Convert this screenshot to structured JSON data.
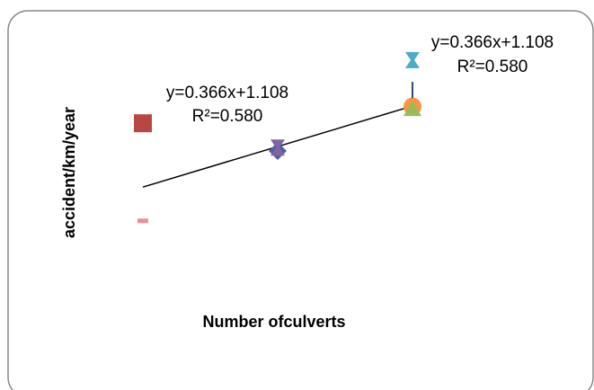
{
  "chart_data": {
    "type": "scatter",
    "title": "",
    "xlabel": "Number ofculverts",
    "ylabel": "accident/km/year",
    "grid": false,
    "legend": "none",
    "xlim": [
      0,
      4
    ],
    "ylim": [
      0,
      3
    ],
    "series": [
      {
        "marker": "square",
        "color": "#b84743",
        "points": [
          [
            1,
            2.05
          ]
        ]
      },
      {
        "marker": "dash",
        "color": "#e8909a",
        "points": [
          [
            1,
            1.17
          ]
        ]
      },
      {
        "marker": "diamond",
        "color": "#4f5fa6",
        "points": [
          [
            2,
            1.8
          ]
        ]
      },
      {
        "marker": "hourglass",
        "color": "#8064a2",
        "points": [
          [
            2,
            1.83
          ]
        ]
      },
      {
        "marker": "hourglass",
        "color": "#4bacc6",
        "points": [
          [
            3,
            2.62
          ]
        ]
      },
      {
        "marker": "circle",
        "color": "#f79646",
        "points": [
          [
            3,
            2.2
          ]
        ]
      },
      {
        "marker": "triangle",
        "color": "#9bbb59",
        "points": [
          [
            3,
            2.18
          ]
        ]
      },
      {
        "marker": "plus",
        "color": "#2c4d75",
        "points": [
          [
            3,
            2.35
          ]
        ]
      }
    ],
    "trendline": {
      "slope": 0.366,
      "intercept": 1.108,
      "x_range": [
        1,
        3
      ]
    },
    "annotations": [
      {
        "id": "eq1",
        "line1": "y=0.366x+1.108",
        "line2": "R²=0.580"
      },
      {
        "id": "eq2",
        "line1": "y=0.366x+1.108",
        "line2": "R²=0.580"
      }
    ]
  }
}
